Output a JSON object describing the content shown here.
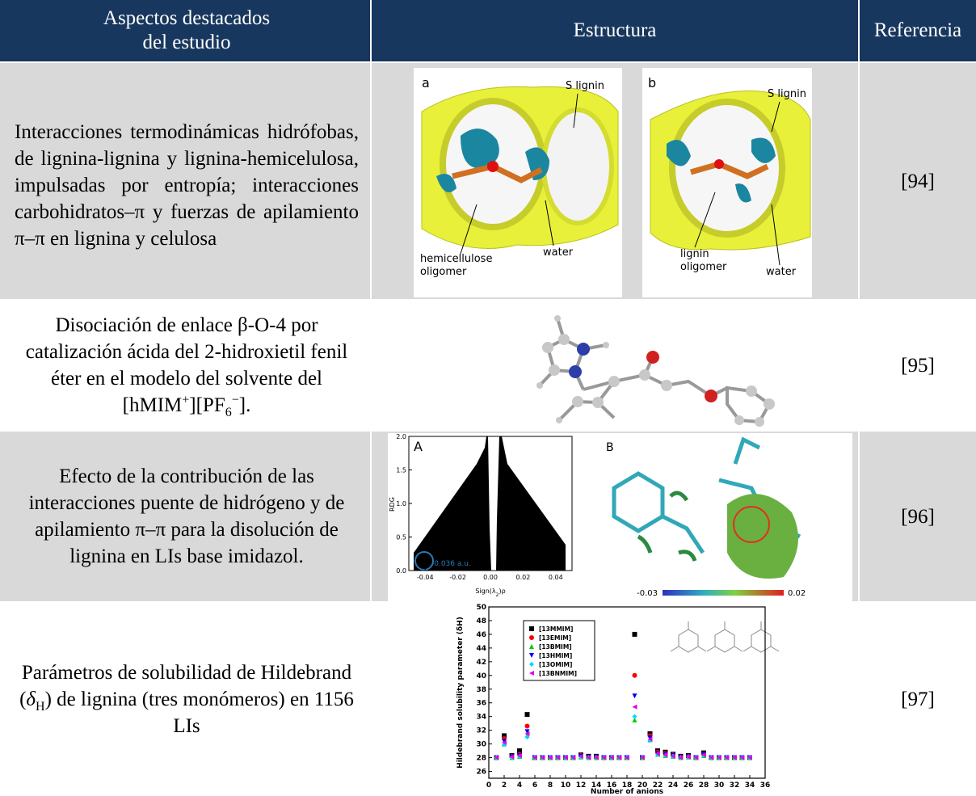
{
  "table": {
    "header": {
      "col1": [
        "Aspectos destacados",
        "del estudio"
      ],
      "col2": "Estructura",
      "col3": "Referencia"
    },
    "rows": [
      {
        "text": [
          {
            "text": "Interacciones termodinámicas hidrófobas, de lignina-lignina y lignina-hemicelulosa, impulsadas por entropía; interacciones carbohidratos–π y fuerzas de apilamiento π–π en lignina y celulosa"
          }
        ],
        "figure": {
          "panels": [
            {
              "letter": "a",
              "labels": [
                "S lignin",
                "water",
                "hemicellulose",
                "oligomer"
              ]
            },
            {
              "letter": "b",
              "labels": [
                "S lignin",
                "lignin",
                "oligomer",
                "water"
              ]
            }
          ]
        },
        "reference": "[94]"
      },
      {
        "text": [
          {
            "text": "Disociación de enlace β-O-4 por catalización ácida del 2-hidroxietil fenil éter en el modelo del solvente del [hMIM"
          },
          {
            "text": "+",
            "style": "sup"
          },
          {
            "text": "][PF"
          },
          {
            "text": "6",
            "style": "sub"
          },
          {
            "text": "−",
            "style": "sup"
          },
          {
            "text": "]."
          }
        ],
        "reference": "[95]"
      },
      {
        "text": [
          {
            "text": "Efecto de la contribución de las interacciones puente de hidrógeno y de apilamiento π–π para la disolución de lignina en LIs base imidazol."
          }
        ],
        "figure": {
          "panels": [
            {
              "letter": "A",
              "ylabel": "RDG",
              "xlabel": [
                {
                  "text": "Sign(λ"
                },
                {
                  "text": "2",
                  "style": "sub"
                },
                {
                  "text": ")ρ"
                }
              ],
              "xlim": [
                -0.05,
                0.05
              ],
              "ylim": [
                0,
                2
              ],
              "xticks": [
                -0.04,
                -0.02,
                {
                  "value": 0,
                  "label": "0.00"
                },
                0.02,
                0.04
              ],
              "yticks": [
                {
                  "value": 0,
                  "label": "0.0"
                },
                0.5,
                {
                  "value": 1,
                  "label": "1.0"
                },
                1.5,
                {
                  "value": 2,
                  "label": "2.0"
                }
              ],
              "annotation": "-0.036 a.u."
            },
            {
              "letter": "B",
              "colorbar": [
                -0.03,
                0.02
              ]
            }
          ]
        },
        "reference": "[96]"
      },
      {
        "text": [
          {
            "text": "Parámetros de solubilidad de Hildebrand ("
          },
          {
            "text": "δ",
            "style": "italic"
          },
          {
            "text": "H",
            "style": "sub"
          },
          {
            "text": ") de lignina (tres monómeros) en 1156 LIs"
          }
        ],
        "figure": {
          "type": "scatter",
          "xlabel": "Number of anions",
          "ylabel": "Hildebrand solubility parameter (δH)",
          "xlim": [
            0,
            36
          ],
          "ylim": [
            25,
            50
          ],
          "xticks": [
            0,
            2,
            4,
            6,
            8,
            10,
            12,
            14,
            16,
            18,
            20,
            22,
            24,
            26,
            28,
            30,
            32,
            34,
            36
          ],
          "yticks": [
            26,
            28,
            30,
            32,
            34,
            36,
            38,
            40,
            42,
            44,
            46,
            48,
            50
          ],
          "x": [
            1,
            2,
            3,
            4,
            5,
            6,
            7,
            8,
            9,
            10,
            11,
            12,
            13,
            14,
            15,
            16,
            17,
            18,
            19,
            20,
            21,
            22,
            23,
            24,
            25,
            26,
            27,
            28,
            29,
            30,
            31,
            32,
            33,
            34
          ],
          "series": [
            {
              "name": "[13MMIM]",
              "color": "#000000",
              "marker": "square",
              "values": [
                28,
                31.2,
                28.3,
                29,
                34.3,
                28,
                28,
                28,
                28,
                28,
                28,
                28.4,
                28.2,
                28.2,
                28,
                28,
                28,
                28,
                46,
                28,
                31.5,
                29,
                28.8,
                28.5,
                28.2,
                28.3,
                28,
                28.7,
                28,
                28,
                28,
                28,
                28,
                28
              ]
            },
            {
              "name": "[13EMIM]",
              "color": "#ff0000",
              "marker": "circle",
              "values": [
                28,
                30.8,
                28.2,
                28.5,
                32.6,
                28,
                28,
                28,
                28,
                28,
                28,
                28.3,
                28.1,
                28.1,
                28,
                28,
                28,
                28,
                40,
                28,
                31.2,
                28.8,
                28.6,
                28.4,
                28.1,
                28.2,
                28,
                28.5,
                28,
                28,
                28,
                28,
                28,
                28
              ]
            },
            {
              "name": "[13BMIM]",
              "color": "#00cc00",
              "marker": "triangle-up",
              "values": [
                28,
                30,
                28,
                28.2,
                31.3,
                28,
                28,
                28,
                28,
                28,
                28,
                28.1,
                28,
                28,
                28,
                28,
                28,
                28,
                33.5,
                28,
                30.6,
                28.5,
                28.3,
                28.2,
                28,
                28.1,
                28,
                28.3,
                28,
                28,
                28,
                28,
                28,
                28
              ]
            },
            {
              "name": "[13HMIM]",
              "color": "#0000ff",
              "marker": "triangle-down",
              "values": [
                28,
                30.4,
                28.1,
                28.3,
                31.8,
                28,
                28,
                28,
                28,
                28,
                28,
                28.2,
                28,
                28,
                28,
                28,
                28,
                28,
                37,
                28,
                30.9,
                28.6,
                28.4,
                28.3,
                28,
                28.1,
                28,
                28.4,
                28,
                28,
                28,
                28,
                28,
                28
              ]
            },
            {
              "name": "[13OMIM]",
              "color": "#00d8ff",
              "marker": "diamond",
              "values": [
                28,
                29.9,
                28,
                28.2,
                31,
                28,
                28,
                28,
                28,
                28,
                28,
                28.1,
                28,
                28,
                28,
                28,
                28,
                28,
                34,
                28,
                30.5,
                28.5,
                28.3,
                28.2,
                28,
                28.1,
                28,
                28.3,
                28,
                28,
                28,
                28,
                28,
                28
              ]
            },
            {
              "name": "[13BNMIM]",
              "color": "#e000e0",
              "marker": "triangle-left",
              "values": [
                28,
                30.2,
                28.1,
                28.3,
                31.5,
                28,
                28,
                28,
                28,
                28,
                28,
                28.2,
                28,
                28,
                28,
                28,
                28,
                28,
                35.4,
                28,
                30.7,
                28.6,
                28.4,
                28.2,
                28,
                28.1,
                28,
                28.4,
                28,
                28,
                28,
                28,
                28,
                28
              ]
            }
          ]
        },
        "reference": "[97]"
      }
    ]
  }
}
